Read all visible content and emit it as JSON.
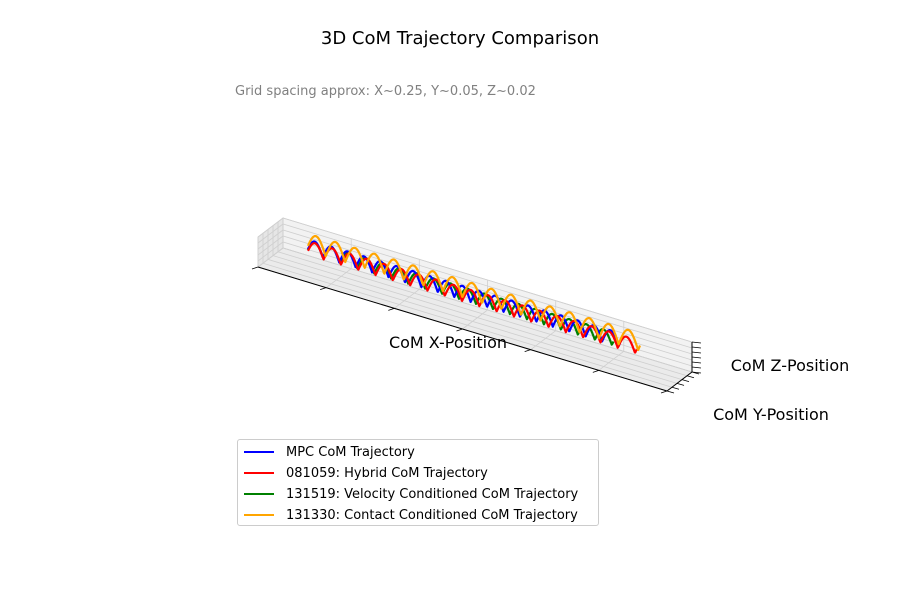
{
  "chart_data": {
    "type": "line",
    "projection": "3d",
    "title": "3D CoM Trajectory Comparison",
    "annotation": "Grid spacing approx: X~0.25, Y~0.05, Z~0.02",
    "xlabel": "CoM X-Position",
    "ylabel": "CoM Y-Position",
    "zlabel": "CoM Z-Position",
    "grid": true,
    "legend_position": "bottom",
    "series": [
      {
        "name": "MPC CoM Trajectory",
        "color": "#0000ff",
        "cycles": 19,
        "x_end": 0.94,
        "z_amplitude": 0.55,
        "z_offset": -0.1
      },
      {
        "name": "081059: Hybrid CoM Trajectory",
        "color": "#ff0000",
        "cycles": 19,
        "x_end": 0.99,
        "z_amplitude": 0.55,
        "z_offset": 0.0
      },
      {
        "name": "131519: Velocity Conditioned CoM Trajectory",
        "color": "#008000",
        "cycles": 18,
        "x_end": 0.92,
        "z_amplitude": 0.5,
        "z_offset": -0.05
      },
      {
        "name": "131330: Contact Conditioned CoM Trajectory",
        "color": "#ffa500",
        "cycles": 17,
        "x_end": 1.0,
        "z_amplitude": 0.8,
        "z_offset": -0.35
      }
    ]
  }
}
